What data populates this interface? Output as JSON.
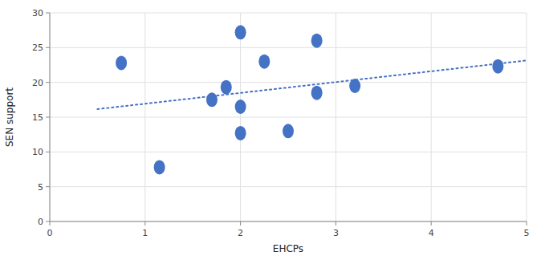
{
  "chart_data": {
    "type": "scatter",
    "xlabel": "EHCPs",
    "ylabel": "SEN support",
    "xlim": [
      0,
      5
    ],
    "ylim": [
      0,
      30
    ],
    "xticks": [
      0,
      1,
      2,
      3,
      4,
      5
    ],
    "yticks": [
      0,
      5,
      10,
      15,
      20,
      25,
      30
    ],
    "grid": true,
    "series": [
      {
        "type": "scatter",
        "marker": "ellipse",
        "color": "#4472C4",
        "x": [
          0.75,
          1.15,
          1.7,
          1.85,
          2.0,
          2.0,
          2.0,
          2.25,
          2.5,
          2.8,
          2.8,
          3.2,
          4.7
        ],
        "values": [
          22.8,
          7.8,
          17.5,
          19.3,
          27.2,
          16.5,
          12.7,
          23.0,
          13.0,
          26.0,
          18.5,
          19.5,
          22.3
        ]
      },
      {
        "type": "line",
        "line_style": "dotted",
        "color": "#4472C4",
        "x": [
          0.5,
          5.0
        ],
        "values": [
          16.156,
          23.153
        ]
      }
    ]
  }
}
